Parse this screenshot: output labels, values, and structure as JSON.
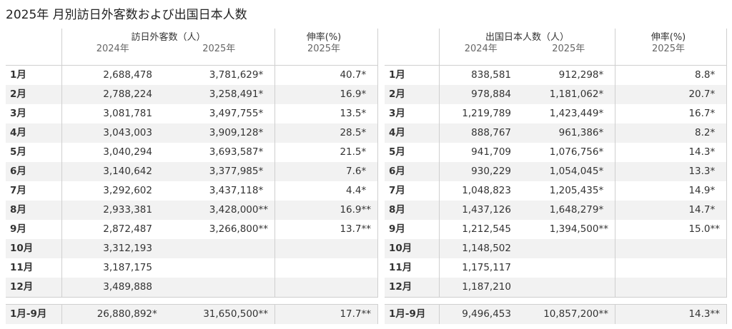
{
  "title": "2025年 月別訪日外客数および出国日本人数",
  "left": {
    "group_header": "訪日外客数（人）",
    "rate_header": "伸率(%)",
    "year_2024": "2024年",
    "year_2025": "2025年",
    "rate_year": "2025年",
    "rows": [
      {
        "month": "1月",
        "v2024": "2,688,478",
        "m2024": "",
        "v2025": "3,781,629",
        "m2025": "*",
        "rate": "40.7",
        "mrate": "*"
      },
      {
        "month": "2月",
        "v2024": "2,788,224",
        "m2024": "",
        "v2025": "3,258,491",
        "m2025": "*",
        "rate": "16.9",
        "mrate": "*"
      },
      {
        "month": "3月",
        "v2024": "3,081,781",
        "m2024": "",
        "v2025": "3,497,755",
        "m2025": "*",
        "rate": "13.5",
        "mrate": "*"
      },
      {
        "month": "4月",
        "v2024": "3,043,003",
        "m2024": "",
        "v2025": "3,909,128",
        "m2025": "*",
        "rate": "28.5",
        "mrate": "*"
      },
      {
        "month": "5月",
        "v2024": "3,040,294",
        "m2024": "",
        "v2025": "3,693,587",
        "m2025": "*",
        "rate": "21.5",
        "mrate": "*"
      },
      {
        "month": "6月",
        "v2024": "3,140,642",
        "m2024": "",
        "v2025": "3,377,985",
        "m2025": "*",
        "rate": "7.6",
        "mrate": "*"
      },
      {
        "month": "7月",
        "v2024": "3,292,602",
        "m2024": "",
        "v2025": "3,437,118",
        "m2025": "*",
        "rate": "4.4",
        "mrate": "*"
      },
      {
        "month": "8月",
        "v2024": "2,933,381",
        "m2024": "",
        "v2025": "3,428,000",
        "m2025": "**",
        "rate": "16.9",
        "mrate": "**"
      },
      {
        "month": "9月",
        "v2024": "2,872,487",
        "m2024": "",
        "v2025": "3,266,800",
        "m2025": "**",
        "rate": "13.7",
        "mrate": "**"
      },
      {
        "month": "10月",
        "v2024": "3,312,193",
        "m2024": "",
        "v2025": "",
        "m2025": "",
        "rate": "",
        "mrate": ""
      },
      {
        "month": "11月",
        "v2024": "3,187,175",
        "m2024": "",
        "v2025": "",
        "m2025": "",
        "rate": "",
        "mrate": ""
      },
      {
        "month": "12月",
        "v2024": "3,489,888",
        "m2024": "",
        "v2025": "",
        "m2025": "",
        "rate": "",
        "mrate": ""
      }
    ],
    "total": {
      "month": "1月-9月",
      "v2024": "26,880,892",
      "m2024": "*",
      "v2025": "31,650,500",
      "m2025": "**",
      "rate": "17.7",
      "mrate": "**"
    }
  },
  "right": {
    "group_header": "出国日本人数（人）",
    "rate_header": "伸率(%)",
    "year_2024": "2024年",
    "year_2025": "2025年",
    "rate_year": "2025年",
    "rows": [
      {
        "month": "1月",
        "v2024": "838,581",
        "m2024": "",
        "v2025": "912,298",
        "m2025": "*",
        "rate": "8.8",
        "mrate": "*"
      },
      {
        "month": "2月",
        "v2024": "978,884",
        "m2024": "",
        "v2025": "1,181,062",
        "m2025": "*",
        "rate": "20.7",
        "mrate": "*"
      },
      {
        "month": "3月",
        "v2024": "1,219,789",
        "m2024": "",
        "v2025": "1,423,449",
        "m2025": "*",
        "rate": "16.7",
        "mrate": "*"
      },
      {
        "month": "4月",
        "v2024": "888,767",
        "m2024": "",
        "v2025": "961,386",
        "m2025": "*",
        "rate": "8.2",
        "mrate": "*"
      },
      {
        "month": "5月",
        "v2024": "941,709",
        "m2024": "",
        "v2025": "1,076,756",
        "m2025": "*",
        "rate": "14.3",
        "mrate": "*"
      },
      {
        "month": "6月",
        "v2024": "930,229",
        "m2024": "",
        "v2025": "1,054,045",
        "m2025": "*",
        "rate": "13.3",
        "mrate": "*"
      },
      {
        "month": "7月",
        "v2024": "1,048,823",
        "m2024": "",
        "v2025": "1,205,435",
        "m2025": "*",
        "rate": "14.9",
        "mrate": "*"
      },
      {
        "month": "8月",
        "v2024": "1,437,126",
        "m2024": "",
        "v2025": "1,648,279",
        "m2025": "*",
        "rate": "14.7",
        "mrate": "*"
      },
      {
        "month": "9月",
        "v2024": "1,212,545",
        "m2024": "",
        "v2025": "1,394,500",
        "m2025": "**",
        "rate": "15.0",
        "mrate": "**"
      },
      {
        "month": "10月",
        "v2024": "1,148,502",
        "m2024": "",
        "v2025": "",
        "m2025": "",
        "rate": "",
        "mrate": ""
      },
      {
        "month": "11月",
        "v2024": "1,175,117",
        "m2024": "",
        "v2025": "",
        "m2025": "",
        "rate": "",
        "mrate": ""
      },
      {
        "month": "12月",
        "v2024": "1,187,210",
        "m2024": "",
        "v2025": "",
        "m2025": "",
        "rate": "",
        "mrate": ""
      }
    ],
    "total": {
      "month": "1月-9月",
      "v2024": "9,496,453",
      "m2024": "",
      "v2025": "10,857,200",
      "m2025": "**",
      "rate": "14.3",
      "mrate": "**"
    }
  }
}
